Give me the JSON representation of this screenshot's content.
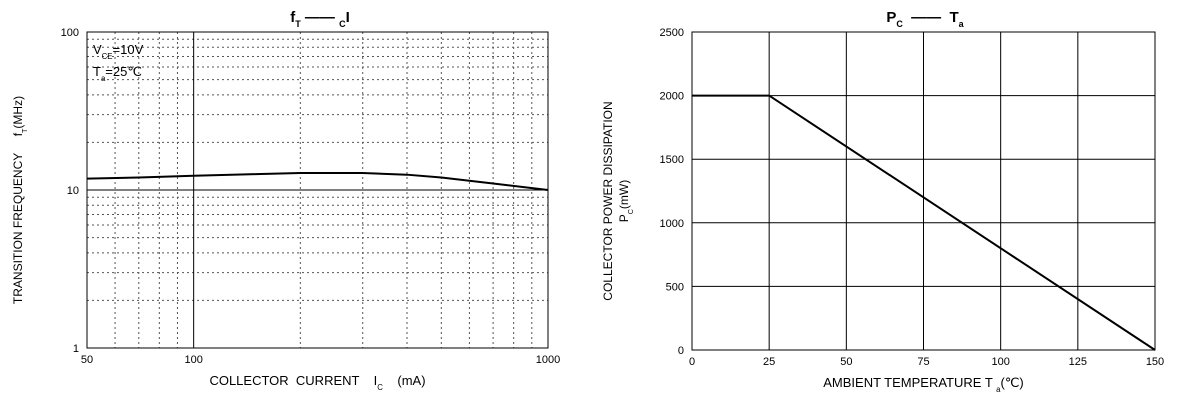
{
  "chart_data": [
    {
      "type": "line",
      "xscale": "log",
      "yscale": "log",
      "color": "#000000",
      "title": [
        {
          "text": "f"
        },
        {
          "text": "T",
          "sub": true
        },
        {
          "text": " —— "
        },
        {
          "text": "C",
          "sub": true
        },
        {
          "text": "I"
        }
      ],
      "annotations": [
        [
          {
            "text": "V"
          },
          {
            "text": "CE",
            "sub": true
          },
          {
            "text": "=10V"
          }
        ],
        [
          {
            "text": "T"
          },
          {
            "text": "a",
            "sub": true
          },
          {
            "text": "=25℃"
          }
        ]
      ],
      "xlabel": [
        [
          {
            "text": "COLLECTOR  CURRENT    I"
          },
          {
            "text": "C",
            "sub": true
          },
          {
            "text": "    (mA)"
          }
        ]
      ],
      "ylabel": [
        [
          {
            "text": "TRANSITION FREQUENCY     f"
          },
          {
            "text": "T",
            "sub": true
          },
          {
            "text": "(MHz)"
          }
        ]
      ],
      "x": [
        50,
        70,
        100,
        150,
        200,
        300,
        400,
        500,
        700,
        1000
      ],
      "values": [
        11.8,
        12.0,
        12.3,
        12.6,
        12.8,
        12.8,
        12.5,
        12.0,
        11.0,
        10.0
      ],
      "xlim": [
        50,
        1000
      ],
      "xticks": [
        50,
        100,
        1000
      ],
      "xminor": [
        60,
        70,
        80,
        90,
        200,
        300,
        400,
        500,
        600,
        700,
        800,
        900
      ],
      "ylim": [
        1,
        100
      ],
      "yticks": [
        1,
        10,
        100
      ],
      "yminor": [
        2,
        3,
        4,
        5,
        6,
        7,
        8,
        9,
        20,
        30,
        40,
        50,
        60,
        70,
        80,
        90
      ],
      "grid": true
    },
    {
      "type": "line",
      "xscale": "linear",
      "yscale": "linear",
      "color": "#000000",
      "title": [
        {
          "text": "P"
        },
        {
          "text": "C",
          "sub": true
        },
        {
          "text": "  ——  T"
        },
        {
          "text": "a",
          "sub": true
        }
      ],
      "xlabel": [
        [
          {
            "text": "AMBIENT TEMPERATURE T "
          },
          {
            "text": "a",
            "sub": true
          },
          {
            "text": "(℃)"
          }
        ]
      ],
      "ylabel": [
        [
          {
            "text": "COLLECTOR POWER DISSIPATION"
          }
        ],
        [
          {
            "text": "P"
          },
          {
            "text": "C",
            "sub": true
          },
          {
            "text": "(mW)"
          }
        ]
      ],
      "x": [
        0,
        25,
        150
      ],
      "values": [
        2000,
        2000,
        0
      ],
      "xlim": [
        0,
        150
      ],
      "xticks": [
        0,
        25,
        50,
        75,
        100,
        125,
        150
      ],
      "ylim": [
        0,
        2500
      ],
      "yticks": [
        0,
        500,
        1000,
        1500,
        2000,
        2500
      ],
      "grid": true
    }
  ]
}
